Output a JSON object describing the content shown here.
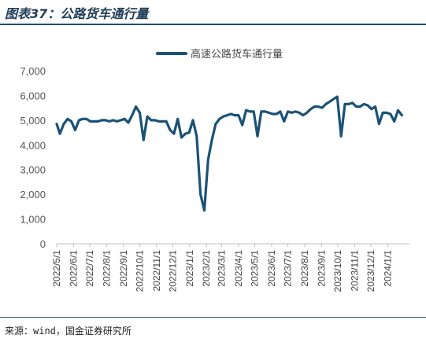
{
  "header": {
    "title": "图表37：公路货车通行量"
  },
  "footer": {
    "source": "来源：wind，国金证券研究所"
  },
  "colors": {
    "series": "#1a5276",
    "rule": "#1f4e79"
  },
  "chart_data": {
    "type": "line",
    "title": "",
    "xlabel": "",
    "ylabel": "",
    "ylim": [
      0,
      7000
    ],
    "y_ticks": [
      "0",
      "1,000",
      "2,000",
      "3,000",
      "4,000",
      "5,000",
      "6,000",
      "7,000"
    ],
    "x_range": [
      "2022-05-01",
      "2024-02-10"
    ],
    "x_tick_labels": [
      "2022/5/1",
      "2022/6/1",
      "2022/7/1",
      "2022/8/1",
      "2022/9/1",
      "2022/10/1",
      "2022/11/1",
      "2022/12/1",
      "2023/1/1",
      "2023/2/1",
      "2023/3/1",
      "2023/4/1",
      "2023/5/1",
      "2023/6/1",
      "2023/7/1",
      "2023/8/1",
      "2023/9/1",
      "2023/10/1",
      "2023/11/1",
      "2023/12/1",
      "2024/1/1"
    ],
    "grid": false,
    "legend": "top",
    "series": [
      {
        "name": "高速公路货车通行量",
        "points": [
          [
            "2022-05-01",
            4850
          ],
          [
            "2022-05-07",
            4450
          ],
          [
            "2022-05-14",
            4850
          ],
          [
            "2022-05-21",
            5050
          ],
          [
            "2022-05-28",
            4950
          ],
          [
            "2022-06-04",
            4600
          ],
          [
            "2022-06-11",
            5000
          ],
          [
            "2022-06-18",
            5050
          ],
          [
            "2022-06-25",
            5050
          ],
          [
            "2022-07-02",
            4950
          ],
          [
            "2022-07-09",
            4950
          ],
          [
            "2022-07-16",
            4950
          ],
          [
            "2022-07-23",
            5000
          ],
          [
            "2022-07-30",
            5000
          ],
          [
            "2022-08-06",
            4950
          ],
          [
            "2022-08-13",
            5000
          ],
          [
            "2022-08-20",
            4950
          ],
          [
            "2022-08-27",
            5000
          ],
          [
            "2022-09-03",
            5050
          ],
          [
            "2022-09-10",
            4900
          ],
          [
            "2022-09-17",
            5200
          ],
          [
            "2022-09-24",
            5550
          ],
          [
            "2022-10-01",
            5300
          ],
          [
            "2022-10-08",
            4200
          ],
          [
            "2022-10-15",
            5150
          ],
          [
            "2022-10-22",
            5000
          ],
          [
            "2022-10-29",
            5000
          ],
          [
            "2022-11-05",
            4950
          ],
          [
            "2022-11-12",
            4950
          ],
          [
            "2022-11-19",
            4950
          ],
          [
            "2022-11-26",
            4600
          ],
          [
            "2022-12-03",
            4450
          ],
          [
            "2022-12-10",
            5050
          ],
          [
            "2022-12-17",
            4300
          ],
          [
            "2022-12-24",
            4450
          ],
          [
            "2022-12-31",
            4500
          ],
          [
            "2023-01-07",
            5000
          ],
          [
            "2023-01-14",
            4350
          ],
          [
            "2023-01-21",
            2000
          ],
          [
            "2023-01-28",
            1350
          ],
          [
            "2023-02-04",
            3400
          ],
          [
            "2023-02-11",
            4200
          ],
          [
            "2023-02-18",
            4850
          ],
          [
            "2023-02-25",
            5050
          ],
          [
            "2023-03-04",
            5150
          ],
          [
            "2023-03-11",
            5200
          ],
          [
            "2023-03-18",
            5250
          ],
          [
            "2023-03-25",
            5200
          ],
          [
            "2023-04-01",
            5200
          ],
          [
            "2023-04-08",
            4800
          ],
          [
            "2023-04-15",
            5400
          ],
          [
            "2023-04-22",
            5350
          ],
          [
            "2023-04-29",
            5350
          ],
          [
            "2023-05-06",
            4350
          ],
          [
            "2023-05-13",
            5350
          ],
          [
            "2023-05-20",
            5350
          ],
          [
            "2023-05-27",
            5300
          ],
          [
            "2023-06-03",
            5250
          ],
          [
            "2023-06-10",
            5250
          ],
          [
            "2023-06-17",
            5350
          ],
          [
            "2023-06-24",
            4950
          ],
          [
            "2023-07-01",
            5350
          ],
          [
            "2023-07-08",
            5300
          ],
          [
            "2023-07-15",
            5350
          ],
          [
            "2023-07-22",
            5300
          ],
          [
            "2023-07-29",
            5200
          ],
          [
            "2023-08-05",
            5300
          ],
          [
            "2023-08-12",
            5450
          ],
          [
            "2023-08-19",
            5550
          ],
          [
            "2023-08-26",
            5550
          ],
          [
            "2023-09-02",
            5500
          ],
          [
            "2023-09-09",
            5650
          ],
          [
            "2023-09-16",
            5750
          ],
          [
            "2023-09-23",
            5850
          ],
          [
            "2023-09-30",
            5950
          ],
          [
            "2023-10-07",
            4350
          ],
          [
            "2023-10-14",
            5650
          ],
          [
            "2023-10-21",
            5650
          ],
          [
            "2023-10-28",
            5700
          ],
          [
            "2023-11-04",
            5550
          ],
          [
            "2023-11-11",
            5550
          ],
          [
            "2023-11-18",
            5650
          ],
          [
            "2023-11-25",
            5600
          ],
          [
            "2023-12-02",
            5450
          ],
          [
            "2023-12-09",
            5550
          ],
          [
            "2023-12-16",
            4850
          ],
          [
            "2023-12-23",
            5300
          ],
          [
            "2023-12-30",
            5300
          ],
          [
            "2024-01-06",
            5250
          ],
          [
            "2024-01-13",
            4950
          ],
          [
            "2024-01-20",
            5400
          ],
          [
            "2024-01-27",
            5200
          ]
        ]
      }
    ]
  }
}
